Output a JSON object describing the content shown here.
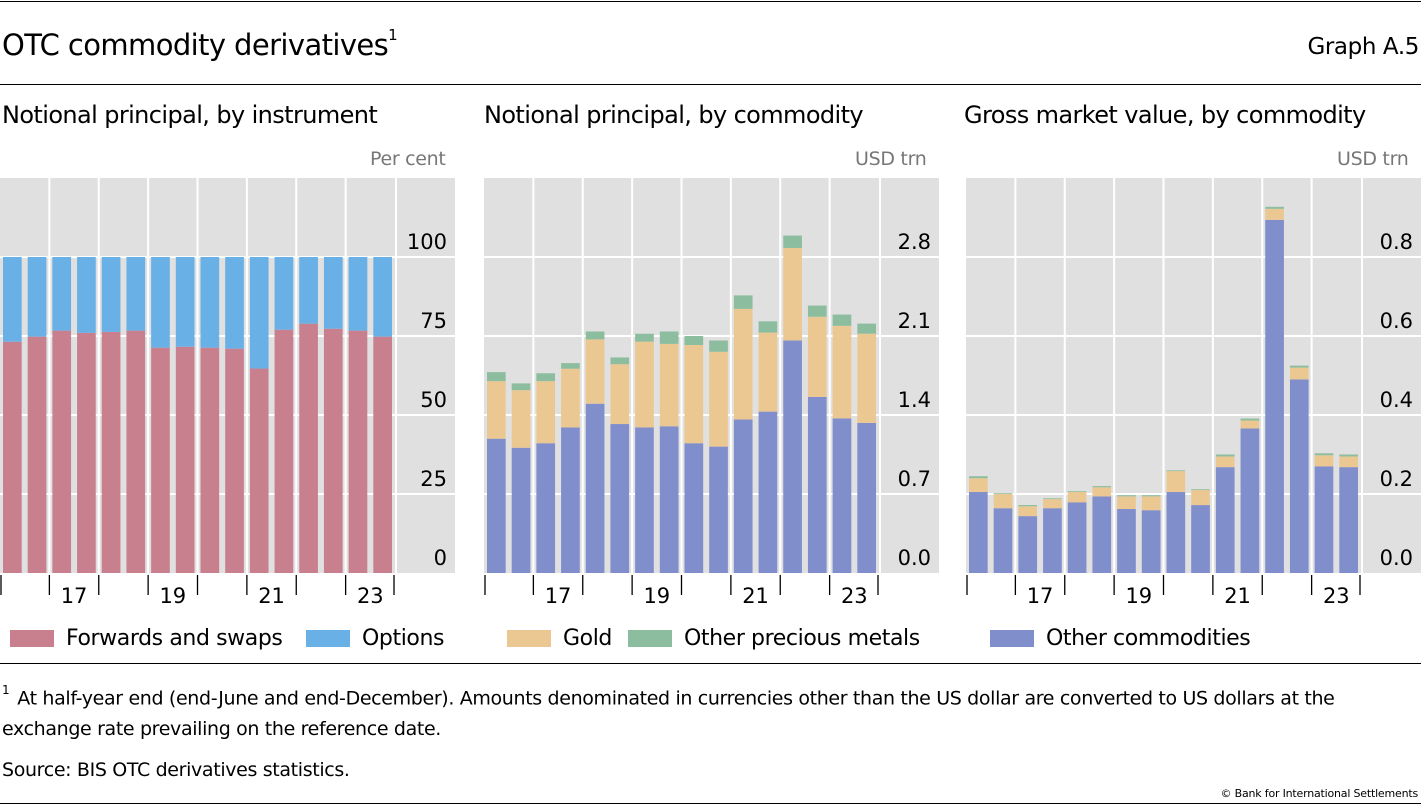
{
  "header": {
    "title": "OTC commodity derivatives",
    "title_footnote_marker": "1",
    "graph_number": "Graph A.5"
  },
  "colors": {
    "forwards_and_swaps": "#c8808f",
    "options": "#68b0e6",
    "gold": "#ebc891",
    "other_precious_metals": "#8dbd9f",
    "other_commodities": "#808ecb",
    "plot_background": "#e0e0e0",
    "gridline": "#ffffff"
  },
  "legend": [
    {
      "key": "forwards_and_swaps",
      "label": "Forwards and swaps"
    },
    {
      "key": "options",
      "label": "Options"
    },
    {
      "key": "gold",
      "label": "Gold"
    },
    {
      "key": "other_precious_metals",
      "label": "Other precious metals"
    },
    {
      "key": "other_commodities",
      "label": "Other commodities"
    }
  ],
  "footnote": {
    "marker": "1",
    "text": "At half-year end (end-June and end-December). Amounts denominated in currencies other than the US dollar are converted to US dollars at the exchange rate prevailing on the reference date."
  },
  "source": "Source: BIS OTC derivatives statistics.",
  "copyright": "© Bank for International Settlements",
  "chart_data": [
    {
      "type": "bar",
      "stacked": true,
      "title": "Notional principal, by instrument",
      "unit_label": "Per cent",
      "xlabel": "",
      "ylabel": "Per cent",
      "ylim": [
        0,
        125
      ],
      "yticks": [
        0,
        25,
        50,
        75,
        100
      ],
      "ytick_labels": [
        "0",
        "25",
        "50",
        "75",
        "100"
      ],
      "y_axis_side": "right",
      "grid": true,
      "periods": [
        "H1 2016",
        "H2 2016",
        "H1 2017",
        "H2 2017",
        "H1 2018",
        "H2 2018",
        "H1 2019",
        "H2 2019",
        "H1 2020",
        "H2 2020",
        "H1 2021",
        "H2 2021",
        "H1 2022",
        "H2 2022",
        "H1 2023",
        "H2 2023"
      ],
      "xtick_labels": [
        {
          "label": "17",
          "year_index": 1
        },
        {
          "label": "19",
          "year_index": 3
        },
        {
          "label": "21",
          "year_index": 5
        },
        {
          "label": "23",
          "year_index": 7
        }
      ],
      "series": [
        {
          "name": "Forwards and swaps",
          "key": "forwards_and_swaps",
          "values": [
            73.2,
            74.8,
            76.7,
            76.0,
            76.3,
            76.7,
            71.3,
            71.6,
            71.3,
            71.0,
            64.7,
            77.0,
            78.9,
            77.3,
            76.7,
            74.8
          ]
        },
        {
          "name": "Options",
          "key": "options",
          "values": [
            26.8,
            25.2,
            23.3,
            24.0,
            23.7,
            23.3,
            28.7,
            28.4,
            28.7,
            29.0,
            35.3,
            23.0,
            21.1,
            22.7,
            23.3,
            25.2
          ]
        }
      ]
    },
    {
      "type": "bar",
      "stacked": true,
      "title": "Notional principal, by commodity",
      "unit_label": "USD trn",
      "xlabel": "",
      "ylabel": "USD trn",
      "ylim": [
        0,
        3.5
      ],
      "yticks": [
        0,
        0.7,
        1.4,
        2.1,
        2.8
      ],
      "ytick_labels": [
        "0.0",
        "0.7",
        "1.4",
        "2.1",
        "2.8"
      ],
      "y_axis_side": "right",
      "grid": true,
      "periods": [
        "H1 2016",
        "H2 2016",
        "H1 2017",
        "H2 2017",
        "H1 2018",
        "H2 2018",
        "H1 2019",
        "H2 2019",
        "H1 2020",
        "H2 2020",
        "H1 2021",
        "H2 2021",
        "H1 2022",
        "H2 2022",
        "H1 2023",
        "H2 2023"
      ],
      "xtick_labels": [
        {
          "label": "17",
          "year_index": 1
        },
        {
          "label": "19",
          "year_index": 3
        },
        {
          "label": "21",
          "year_index": 5
        },
        {
          "label": "23",
          "year_index": 7
        }
      ],
      "series": [
        {
          "name": "Other commodities",
          "key": "other_commodities",
          "values": [
            1.19,
            1.11,
            1.15,
            1.29,
            1.5,
            1.32,
            1.29,
            1.3,
            1.15,
            1.12,
            1.36,
            1.43,
            2.06,
            1.56,
            1.37,
            1.33
          ]
        },
        {
          "name": "Gold",
          "key": "gold",
          "values": [
            0.51,
            0.51,
            0.55,
            0.52,
            0.57,
            0.53,
            0.76,
            0.73,
            0.87,
            0.84,
            0.98,
            0.7,
            0.82,
            0.71,
            0.82,
            0.79
          ]
        },
        {
          "name": "Other precious metals",
          "key": "other_precious_metals",
          "values": [
            0.08,
            0.06,
            0.07,
            0.05,
            0.07,
            0.06,
            0.07,
            0.11,
            0.08,
            0.1,
            0.12,
            0.1,
            0.11,
            0.1,
            0.1,
            0.09
          ]
        }
      ]
    },
    {
      "type": "bar",
      "stacked": true,
      "title": "Gross market value, by commodity",
      "unit_label": "USD trn",
      "xlabel": "",
      "ylabel": "USD trn",
      "ylim": [
        0,
        1.0
      ],
      "yticks": [
        0,
        0.2,
        0.4,
        0.6,
        0.8
      ],
      "ytick_labels": [
        "0.0",
        "0.2",
        "0.4",
        "0.6",
        "0.8"
      ],
      "y_axis_side": "right",
      "grid": true,
      "periods": [
        "H1 2016",
        "H2 2016",
        "H1 2017",
        "H2 2017",
        "H1 2018",
        "H2 2018",
        "H1 2019",
        "H2 2019",
        "H1 2020",
        "H2 2020",
        "H1 2021",
        "H2 2021",
        "H1 2022",
        "H2 2022",
        "H1 2023",
        "H2 2023"
      ],
      "xtick_labels": [
        {
          "label": "17",
          "year_index": 1
        },
        {
          "label": "19",
          "year_index": 3
        },
        {
          "label": "21",
          "year_index": 5
        },
        {
          "label": "23",
          "year_index": 7
        }
      ],
      "series": [
        {
          "name": "Other commodities",
          "key": "other_commodities",
          "values": [
            0.205,
            0.164,
            0.144,
            0.164,
            0.179,
            0.194,
            0.162,
            0.159,
            0.205,
            0.172,
            0.268,
            0.366,
            0.894,
            0.49,
            0.27,
            0.268
          ]
        },
        {
          "name": "Gold",
          "key": "gold",
          "values": [
            0.035,
            0.036,
            0.025,
            0.023,
            0.026,
            0.023,
            0.032,
            0.035,
            0.053,
            0.038,
            0.027,
            0.02,
            0.028,
            0.03,
            0.028,
            0.027
          ]
        },
        {
          "name": "Other precious metals",
          "key": "other_precious_metals",
          "values": [
            0.005,
            0.002,
            0.003,
            0.002,
            0.002,
            0.003,
            0.003,
            0.003,
            0.002,
            0.002,
            0.005,
            0.005,
            0.005,
            0.005,
            0.005,
            0.005
          ]
        }
      ]
    }
  ]
}
